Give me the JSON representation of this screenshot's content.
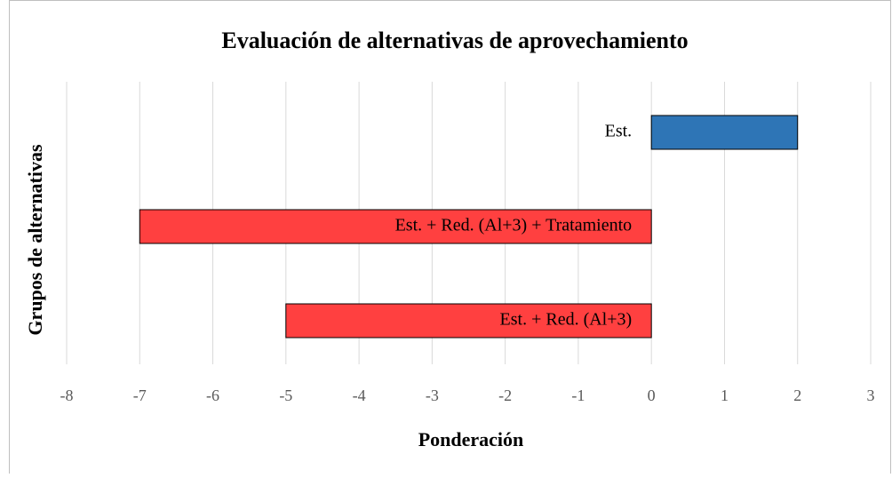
{
  "chart_data": {
    "type": "barh",
    "title": "Evaluación de alternativas de aprovechamiento",
    "xlabel": "Ponderación",
    "ylabel": "Grupos de alternativas",
    "categories": [
      "Est.",
      "Est. + Red. (Al+3) + Tratamiento",
      "Est. + Red. (Al+3)"
    ],
    "values": [
      2,
      -7,
      -5
    ],
    "colors": [
      "#2e75b6",
      "#ff4040",
      "#ff4040"
    ],
    "xlim": [
      -8,
      3
    ],
    "xticks": [
      -8,
      -7,
      -6,
      -5,
      -4,
      -3,
      -2,
      -1,
      0,
      1,
      2,
      3
    ],
    "grid": true
  }
}
